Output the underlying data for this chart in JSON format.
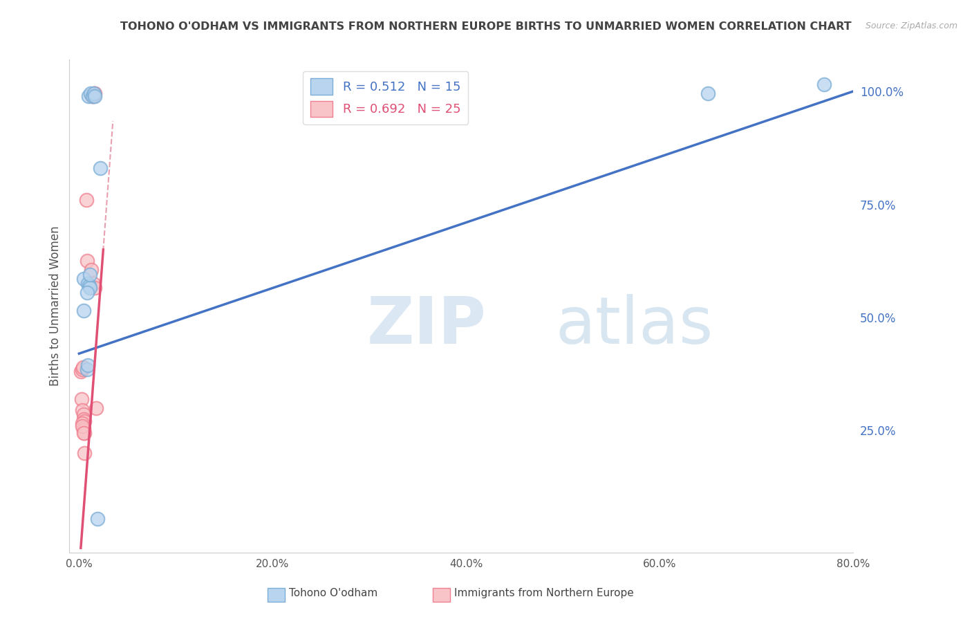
{
  "title": "TOHONO O'ODHAM VS IMMIGRANTS FROM NORTHERN EUROPE BIRTHS TO UNMARRIED WOMEN CORRELATION CHART",
  "source": "Source: ZipAtlas.com",
  "ylabel": "Births to Unmarried Women",
  "xlim": [
    0.0,
    80.0
  ],
  "ylim": [
    -2.0,
    107.0
  ],
  "xlabel_vals": [
    0.0,
    20.0,
    40.0,
    60.0,
    80.0
  ],
  "xlabel_labels": [
    "0.0%",
    "20.0%",
    "40.0%",
    "60.0%",
    "80.0%"
  ],
  "ylabel_vals": [
    25.0,
    50.0,
    75.0,
    100.0
  ],
  "ylabel_labels": [
    "25.0%",
    "50.0%",
    "75.0%",
    "100.0%"
  ],
  "blue_scatter_x": [
    1.0,
    1.2,
    1.4,
    1.55,
    1.65,
    2.2,
    0.5,
    0.9,
    1.05,
    1.1,
    0.85,
    1.15,
    0.5,
    0.8,
    0.9,
    1.9,
    65.0,
    77.0
  ],
  "blue_scatter_y": [
    99.0,
    99.5,
    99.0,
    99.5,
    99.0,
    83.0,
    58.5,
    57.5,
    57.0,
    56.5,
    55.5,
    59.5,
    51.5,
    38.5,
    39.5,
    5.5,
    99.5,
    101.5
  ],
  "pink_scatter_x": [
    1.35,
    1.45,
    1.55,
    1.65,
    0.75,
    0.85,
    1.25,
    1.5,
    1.65,
    0.2,
    0.3,
    0.4,
    0.25,
    0.35,
    0.45,
    0.5,
    0.55,
    0.35,
    0.45,
    0.5,
    0.55,
    1.75,
    0.35,
    0.45,
    0.55
  ],
  "pink_scatter_y": [
    99.0,
    99.0,
    99.5,
    99.5,
    76.0,
    62.5,
    60.5,
    57.5,
    56.5,
    38.0,
    38.5,
    39.0,
    32.0,
    29.5,
    28.5,
    27.5,
    27.0,
    26.5,
    25.5,
    25.0,
    24.5,
    30.0,
    26.0,
    24.5,
    20.0
  ],
  "blue_line_x0": 0.0,
  "blue_line_y0": 42.0,
  "blue_line_x1": 80.0,
  "blue_line_y1": 100.0,
  "pink_solid_x0": 0.18,
  "pink_solid_y0": -1.0,
  "pink_solid_x1": 2.5,
  "pink_solid_y1": 65.0,
  "pink_dash_x0": 0.18,
  "pink_dash_y0": -1.0,
  "pink_dash_x1": 3.5,
  "pink_dash_y1": 95.0,
  "blue_line_color": "#4472c4",
  "pink_line_color": "#e05075",
  "pink_dash_color": "#e8a0b0",
  "scatter_blue_face": "#b8d4ee",
  "scatter_blue_edge": "#7baed6",
  "scatter_pink_face": "#f8c4c8",
  "scatter_pink_edge": "#f08090",
  "grid_color": "#cccccc",
  "title_color": "#444444",
  "right_tick_color": "#4472c4",
  "watermark_zip_color": "#c8d8ee",
  "watermark_atlas_color": "#a8c8e0",
  "background_color": "#ffffff"
}
